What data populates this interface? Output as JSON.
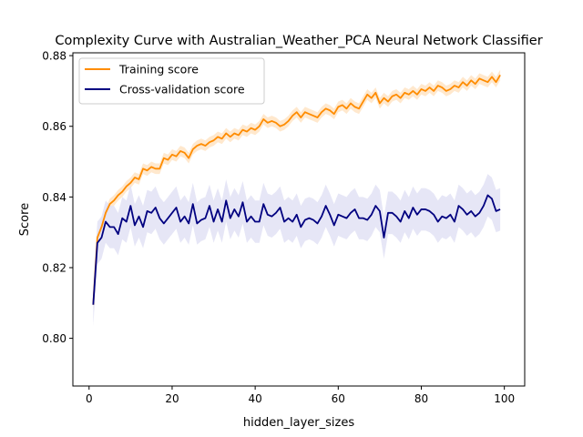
{
  "chart_data": {
    "type": "line",
    "title": "Complexity Curve with Australian_Weather_PCA Neural Network Classifier",
    "xlabel": "hidden_layer_sizes",
    "ylabel": "Score",
    "xlim": [
      -3.9,
      104.9
    ],
    "ylim": [
      0.7865,
      0.8808
    ],
    "xticks": [
      0,
      20,
      40,
      60,
      80,
      100
    ],
    "yticks": [
      0.8,
      0.82,
      0.84,
      0.86,
      0.88
    ],
    "ytick_labels": [
      "0.80",
      "0.82",
      "0.84",
      "0.86",
      "0.88"
    ],
    "grid": false,
    "legend_position": "upper-left",
    "series": [
      {
        "name": "Training score",
        "color": "#ff8c00",
        "band_color": "#ffe4c4",
        "band_halfwidth": 0.0015,
        "x": [
          1,
          2,
          3,
          4,
          5,
          6,
          7,
          8,
          9,
          10,
          11,
          12,
          13,
          14,
          15,
          16,
          17,
          18,
          19,
          20,
          21,
          22,
          23,
          24,
          25,
          26,
          27,
          28,
          29,
          30,
          31,
          32,
          33,
          34,
          35,
          36,
          37,
          38,
          39,
          40,
          41,
          42,
          43,
          44,
          45,
          46,
          47,
          48,
          49,
          50,
          51,
          52,
          53,
          54,
          55,
          56,
          57,
          58,
          59,
          60,
          61,
          62,
          63,
          64,
          65,
          66,
          67,
          68,
          69,
          70,
          71,
          72,
          73,
          74,
          75,
          76,
          77,
          78,
          79,
          80,
          81,
          82,
          83,
          84,
          85,
          86,
          87,
          88,
          89,
          90,
          91,
          92,
          93,
          94,
          95,
          96,
          97,
          98,
          99
        ],
        "values": [
          0.8095,
          0.8285,
          0.8315,
          0.8355,
          0.838,
          0.839,
          0.8405,
          0.8415,
          0.843,
          0.844,
          0.8455,
          0.845,
          0.848,
          0.8475,
          0.8485,
          0.848,
          0.848,
          0.851,
          0.8505,
          0.852,
          0.8515,
          0.853,
          0.8525,
          0.851,
          0.8535,
          0.8545,
          0.855,
          0.8545,
          0.8555,
          0.856,
          0.857,
          0.8565,
          0.858,
          0.857,
          0.858,
          0.8575,
          0.859,
          0.8585,
          0.8595,
          0.859,
          0.86,
          0.862,
          0.861,
          0.8615,
          0.861,
          0.86,
          0.8605,
          0.8615,
          0.863,
          0.864,
          0.8625,
          0.864,
          0.8635,
          0.863,
          0.8625,
          0.864,
          0.865,
          0.8645,
          0.8635,
          0.8655,
          0.866,
          0.865,
          0.8665,
          0.8655,
          0.865,
          0.867,
          0.869,
          0.868,
          0.8695,
          0.8665,
          0.868,
          0.867,
          0.8685,
          0.869,
          0.868,
          0.8695,
          0.869,
          0.87,
          0.869,
          0.8705,
          0.87,
          0.871,
          0.87,
          0.8715,
          0.871,
          0.87,
          0.8705,
          0.8715,
          0.871,
          0.8725,
          0.8715,
          0.873,
          0.872,
          0.8735,
          0.873,
          0.8725,
          0.874,
          0.8725,
          0.8745
        ]
      },
      {
        "name": "Cross-validation score",
        "color": "#000080",
        "band_color": "#e2e2f4",
        "band_halfwidth": 0.006,
        "x": [
          1,
          2,
          3,
          4,
          5,
          6,
          7,
          8,
          9,
          10,
          11,
          12,
          13,
          14,
          15,
          16,
          17,
          18,
          19,
          20,
          21,
          22,
          23,
          24,
          25,
          26,
          27,
          28,
          29,
          30,
          31,
          32,
          33,
          34,
          35,
          36,
          37,
          38,
          39,
          40,
          41,
          42,
          43,
          44,
          45,
          46,
          47,
          48,
          49,
          50,
          51,
          52,
          53,
          54,
          55,
          56,
          57,
          58,
          59,
          60,
          61,
          62,
          63,
          64,
          65,
          66,
          67,
          68,
          69,
          70,
          71,
          72,
          73,
          74,
          75,
          76,
          77,
          78,
          79,
          80,
          81,
          82,
          83,
          84,
          85,
          86,
          87,
          88,
          89,
          90,
          91,
          92,
          93,
          94,
          95,
          96,
          97,
          98,
          99
        ],
        "values": [
          0.8095,
          0.827,
          0.8285,
          0.833,
          0.8315,
          0.8315,
          0.8295,
          0.834,
          0.833,
          0.8375,
          0.832,
          0.8345,
          0.8315,
          0.836,
          0.8355,
          0.837,
          0.834,
          0.8325,
          0.834,
          0.8355,
          0.837,
          0.833,
          0.8345,
          0.8325,
          0.838,
          0.8325,
          0.8335,
          0.834,
          0.8375,
          0.833,
          0.8365,
          0.833,
          0.839,
          0.834,
          0.8365,
          0.8345,
          0.8385,
          0.833,
          0.8345,
          0.833,
          0.833,
          0.838,
          0.835,
          0.8345,
          0.8355,
          0.837,
          0.833,
          0.834,
          0.833,
          0.835,
          0.8315,
          0.8335,
          0.834,
          0.8335,
          0.8325,
          0.8345,
          0.8375,
          0.835,
          0.832,
          0.835,
          0.8345,
          0.834,
          0.8355,
          0.8365,
          0.834,
          0.834,
          0.8335,
          0.835,
          0.8375,
          0.836,
          0.8285,
          0.8355,
          0.8355,
          0.8345,
          0.833,
          0.836,
          0.834,
          0.837,
          0.835,
          0.8365,
          0.8365,
          0.836,
          0.835,
          0.833,
          0.8345,
          0.834,
          0.835,
          0.833,
          0.8375,
          0.8365,
          0.835,
          0.836,
          0.8345,
          0.8355,
          0.8375,
          0.8405,
          0.8395,
          0.836,
          0.8365
        ]
      }
    ]
  }
}
